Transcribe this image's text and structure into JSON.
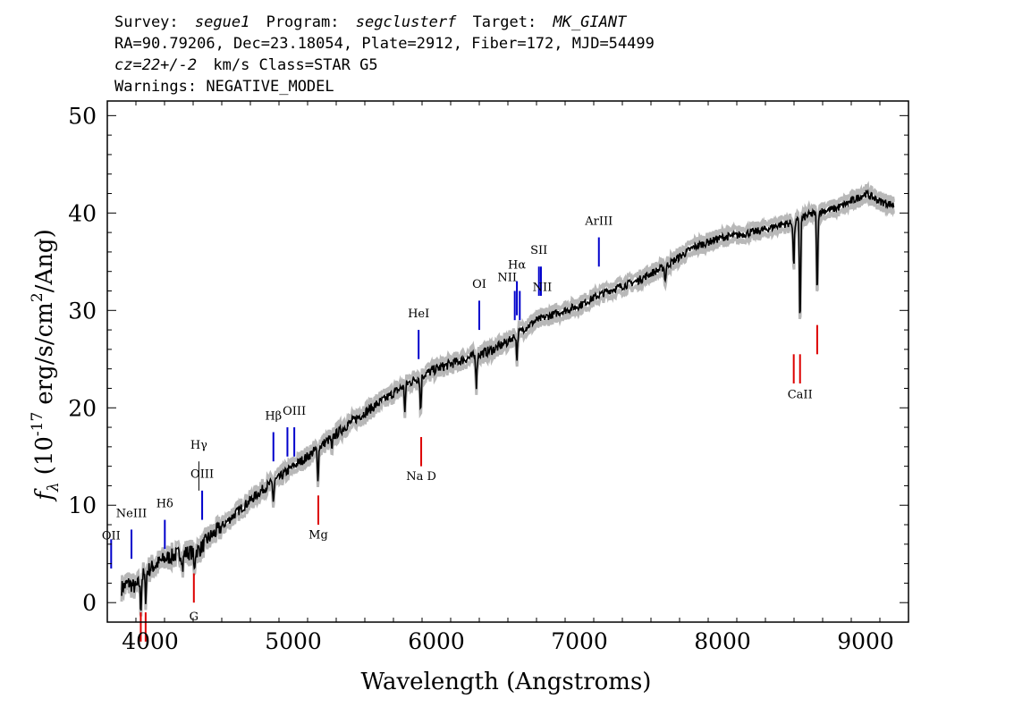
{
  "header": {
    "line1": {
      "survey_label": "Survey:",
      "survey": "segue1",
      "program_label": "Program:",
      "program": "segclusterf",
      "target_label": "Target:",
      "target": "MK_GIANT"
    },
    "line2": "RA=90.79206, Dec=23.18054, Plate=2912, Fiber=172, MJD=54499",
    "line3": {
      "redshift": "cz=22+/-2",
      "rest": "km/s Class=STAR G5"
    },
    "line4": "Warnings: NEGATIVE_MODEL"
  },
  "colors": {
    "spectrum": "#000000",
    "error_band": "#b8b8b8",
    "emission": "#0000cc",
    "absorption": "#dd0000",
    "sky": "#000000"
  },
  "chart_data": {
    "type": "line",
    "xlabel": "Wavelength (Angstroms)",
    "ylabel_parts": {
      "f": "f",
      "sub": "λ",
      "open": "(10",
      "exp1": "-17",
      "mid": "erg/s/cm",
      "exp2": "2",
      "close": "/Ang)"
    },
    "xlim": [
      3700,
      9300
    ],
    "ylim": [
      -2,
      51.5
    ],
    "xticks": [
      4000,
      5000,
      6000,
      7000,
      8000,
      9000
    ],
    "xtick_labels": [
      "4000",
      "5000",
      "6000",
      "7000",
      "8000",
      "9000"
    ],
    "yticks": [
      0,
      10,
      20,
      30,
      40,
      50
    ],
    "ytick_labels": [
      "0",
      "10",
      "20",
      "30",
      "40",
      "50"
    ],
    "grid": false,
    "series": [
      {
        "x": [
          3800,
          3850,
          3900,
          3950,
          4000,
          4050,
          4100,
          4200,
          4300,
          4350,
          4400,
          4500,
          4600,
          4700,
          4800,
          4900,
          5000,
          5100,
          5200,
          5300,
          5400,
          5500,
          5600,
          5700,
          5800,
          5900,
          6000,
          6100,
          6200,
          6300,
          6400,
          6500,
          6600,
          6700,
          6800,
          6900,
          7000,
          7100,
          7200,
          7300,
          7400,
          7500,
          7600,
          7700,
          7800,
          7900,
          8000,
          8100,
          8200,
          8300,
          8400,
          8500,
          8600,
          8700,
          8800,
          8900,
          9000,
          9100,
          9200
        ],
        "y": [
          1.5,
          2.0,
          1.5,
          2.8,
          3.5,
          4.0,
          4.5,
          5.0,
          5.2,
          5.5,
          6.5,
          7.8,
          9.2,
          10.5,
          11.8,
          12.8,
          14.0,
          15.0,
          16.2,
          17.3,
          18.5,
          19.5,
          20.5,
          21.5,
          22.5,
          23.3,
          24.0,
          24.5,
          25.0,
          25.5,
          26.0,
          26.8,
          28.0,
          29.0,
          29.5,
          30.0,
          30.5,
          31.3,
          32.0,
          32.5,
          33.0,
          33.8,
          34.5,
          35.5,
          36.5,
          37.0,
          37.5,
          37.7,
          38.0,
          38.3,
          38.8,
          39.0,
          39.8,
          40.2,
          40.5,
          41.2,
          42.0,
          41.2,
          40.8
        ]
      }
    ],
    "absorption_features": [
      {
        "x": 3934,
        "depth": 3.0
      },
      {
        "x": 3968,
        "depth": 2.5
      },
      {
        "x": 4227,
        "depth": 1.5
      },
      {
        "x": 4308,
        "depth": 2.0
      },
      {
        "x": 4861,
        "depth": 2.0
      },
      {
        "x": 5172,
        "depth": 3.0
      },
      {
        "x": 5270,
        "depth": 1.5
      },
      {
        "x": 5780,
        "depth": 2.5
      },
      {
        "x": 5890,
        "depth": 3.5
      },
      {
        "x": 6280,
        "depth": 3.0
      },
      {
        "x": 6563,
        "depth": 2.5
      },
      {
        "x": 7600,
        "depth": 1.5
      },
      {
        "x": 8498,
        "depth": 4.5
      },
      {
        "x": 8542,
        "depth": 10.5
      },
      {
        "x": 8662,
        "depth": 8.5
      }
    ],
    "emission_lines": [
      {
        "x": 3727,
        "label": "OII",
        "color": "#0000cc",
        "y": [
          3.5,
          6.5
        ],
        "label_y": 6.5
      },
      {
        "x": 3869,
        "label": "NeIII",
        "color": "#0000cc",
        "y": [
          4.5,
          7.5
        ],
        "label_y": 8.8
      },
      {
        "x": 4102,
        "label": "Hδ",
        "color": "#0000cc",
        "y": [
          5.5,
          8.5
        ],
        "label_y": 9.8
      },
      {
        "x": 4340,
        "label": "Hγ",
        "color": "#000000",
        "y": [
          11.5,
          14.5
        ],
        "label_y": 15.8
      },
      {
        "x": 4363,
        "label": "OIII",
        "color": "#0000cc",
        "y": [
          8.5,
          11.5
        ],
        "label_y": 12.8
      },
      {
        "x": 4861,
        "label": "Hβ",
        "color": "#0000cc",
        "y": [
          14.5,
          17.5
        ],
        "label_y": 18.8
      },
      {
        "x": 4959,
        "label": "",
        "color": "#0000cc",
        "y": [
          15.0,
          18.0
        ],
        "label_y": 0
      },
      {
        "x": 5007,
        "label": "OIII",
        "color": "#0000cc",
        "y": [
          15.0,
          18.0
        ],
        "label_y": 19.3
      },
      {
        "x": 5876,
        "label": "HeI",
        "color": "#0000cc",
        "y": [
          25.0,
          28.0
        ],
        "label_y": 29.3
      },
      {
        "x": 6300,
        "label": "OI",
        "color": "#0000cc",
        "y": [
          28.0,
          31.0
        ],
        "label_y": 32.3
      },
      {
        "x": 6548,
        "label": "",
        "color": "#0000cc",
        "y": [
          29.0,
          32.0
        ],
        "label_y": 0
      },
      {
        "x": 6563,
        "label": "Hα",
        "color": "#0000cc",
        "y": [
          29.5,
          33.0
        ],
        "label_y": 34.3
      },
      {
        "x": 6583,
        "label": "NII",
        "color": "#0000cc",
        "y": [
          29.0,
          32.0
        ],
        "label_y": 33.0,
        "label_x": 6495
      },
      {
        "x": 6717,
        "label": "SII",
        "color": "#0000cc",
        "y": [
          31.5,
          34.5
        ],
        "label_y": 35.8
      },
      {
        "x": 6731,
        "label": "",
        "color": "#0000cc",
        "y": [
          31.5,
          34.5
        ],
        "label_y": 0
      },
      {
        "x": 6740,
        "label": "NII",
        "color": "#0000cc",
        "y": [
          0,
          0
        ],
        "label_y": 32.0,
        "label_x": 6740
      },
      {
        "x": 7136,
        "label": "ArIII",
        "color": "#0000cc",
        "y": [
          34.5,
          37.5
        ],
        "label_y": 38.8
      }
    ],
    "absorption_markers": [
      {
        "x": 3934,
        "label": "",
        "y": [
          -4,
          -1
        ]
      },
      {
        "x": 3968,
        "label": "",
        "y": [
          -4,
          -1
        ]
      },
      {
        "x": 4305,
        "label": "G",
        "y": [
          0,
          3
        ],
        "label_y": -1.8
      },
      {
        "x": 5175,
        "label": "Mg",
        "y": [
          8.0,
          11.0
        ],
        "label_y": 6.6
      },
      {
        "x": 5894,
        "label": "Na D",
        "y": [
          14.0,
          17.0
        ],
        "label_y": 12.6
      },
      {
        "x": 8498,
        "label": "",
        "y": [
          22.5,
          25.5
        ]
      },
      {
        "x": 8542,
        "label": "CaII",
        "y": [
          22.5,
          25.5
        ],
        "label_y": 21.0
      },
      {
        "x": 8662,
        "label": "",
        "y": [
          25.5,
          28.5
        ]
      }
    ]
  }
}
